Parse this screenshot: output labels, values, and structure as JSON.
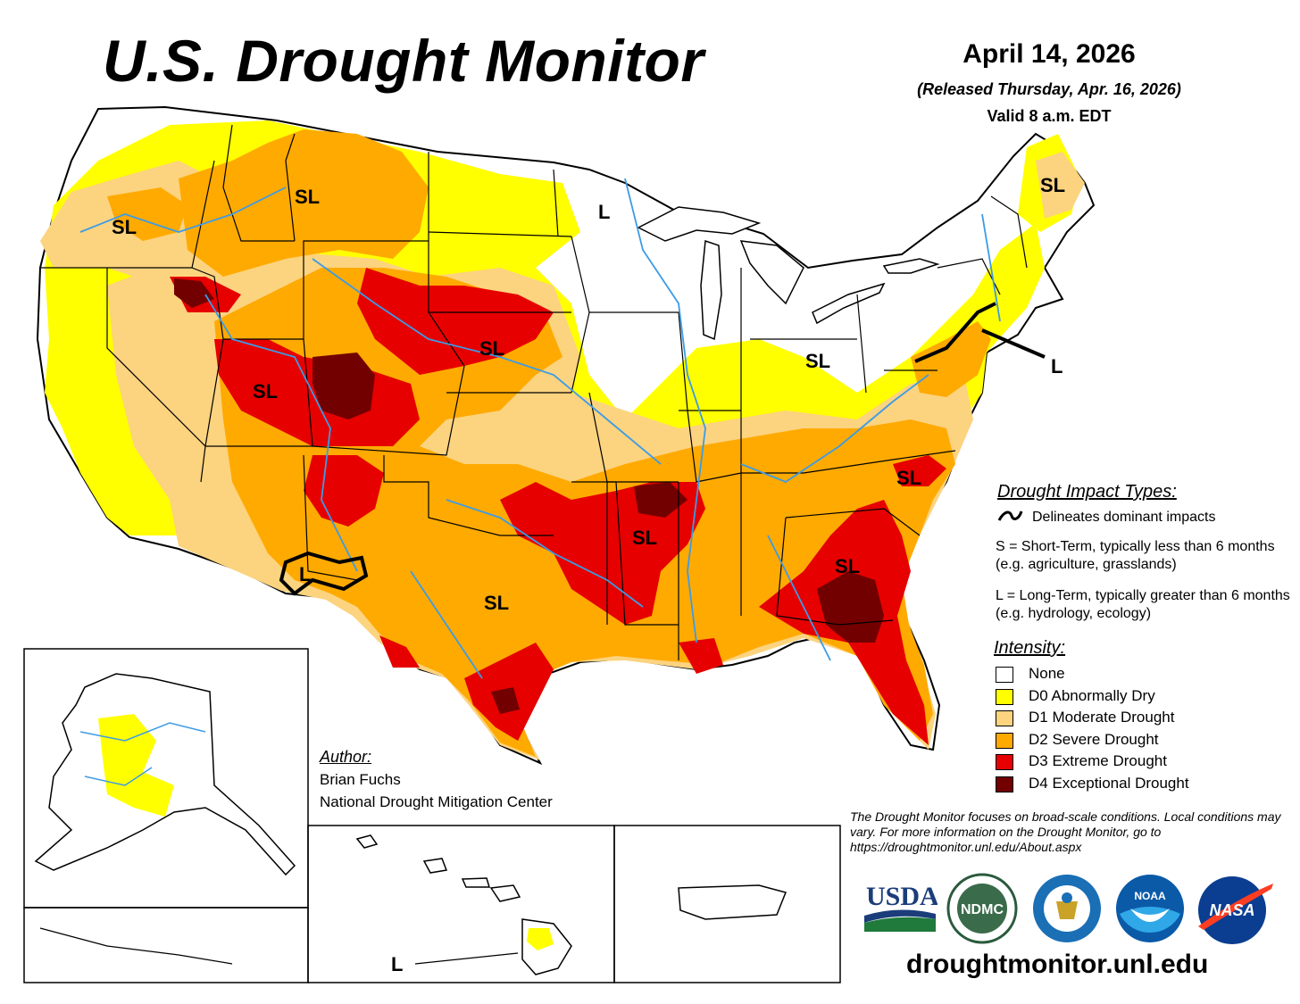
{
  "title": "U.S. Drought Monitor",
  "date": "April 14, 2026",
  "released": "(Released Thursday, Apr. 16, 2026)",
  "valid": "Valid 8 a.m. EDT",
  "impact_types": {
    "title": "Drought Impact Types:",
    "delineates": "Delineates dominant impacts",
    "short_term": "S = Short-Term, typically less than 6 months (e.g. agriculture, grasslands)",
    "long_term": "L = Long-Term, typically greater than 6 months (e.g. hydrology, ecology)"
  },
  "intensity": {
    "title": "Intensity:",
    "items": [
      {
        "label": "None",
        "color": "#ffffff"
      },
      {
        "label": "D0 Abnormally Dry",
        "color": "#ffff00"
      },
      {
        "label": "D1 Moderate Drought",
        "color": "#fcd37f"
      },
      {
        "label": "D2 Severe Drought",
        "color": "#ffaa00"
      },
      {
        "label": "D3 Extreme Drought",
        "color": "#e60000"
      },
      {
        "label": "D4 Exceptional Drought",
        "color": "#730000"
      }
    ]
  },
  "map_labels": [
    "SL",
    "SL",
    "SL",
    "L",
    "SL",
    "SL",
    "SL",
    "L",
    "SL",
    "SL",
    "L",
    "SL",
    "SL",
    "SL",
    "L"
  ],
  "author": {
    "heading": "Author:",
    "name": "Brian Fuchs",
    "org": "National Drought Mitigation Center"
  },
  "disclaimer": "The Drought Monitor focuses on broad-scale conditions. Local conditions may vary. For more information on the Drought Monitor, go to https://droughtmonitor.unl.edu/About.aspx",
  "logos": [
    "USDA",
    "NDMC",
    "Department of Commerce",
    "NOAA",
    "NASA"
  ],
  "logo_text": {
    "usda": "USDA",
    "ndmc": "NDMC",
    "noaa": "NOAA",
    "nasa": "NASA"
  },
  "website": "droughtmonitor.unl.edu",
  "colors": {
    "none": "#ffffff",
    "d0": "#ffff00",
    "d1": "#fcd37f",
    "d2": "#ffaa00",
    "d3": "#e60000",
    "d4": "#730000",
    "rivers": "#3c9be6",
    "borders": "#000000"
  }
}
